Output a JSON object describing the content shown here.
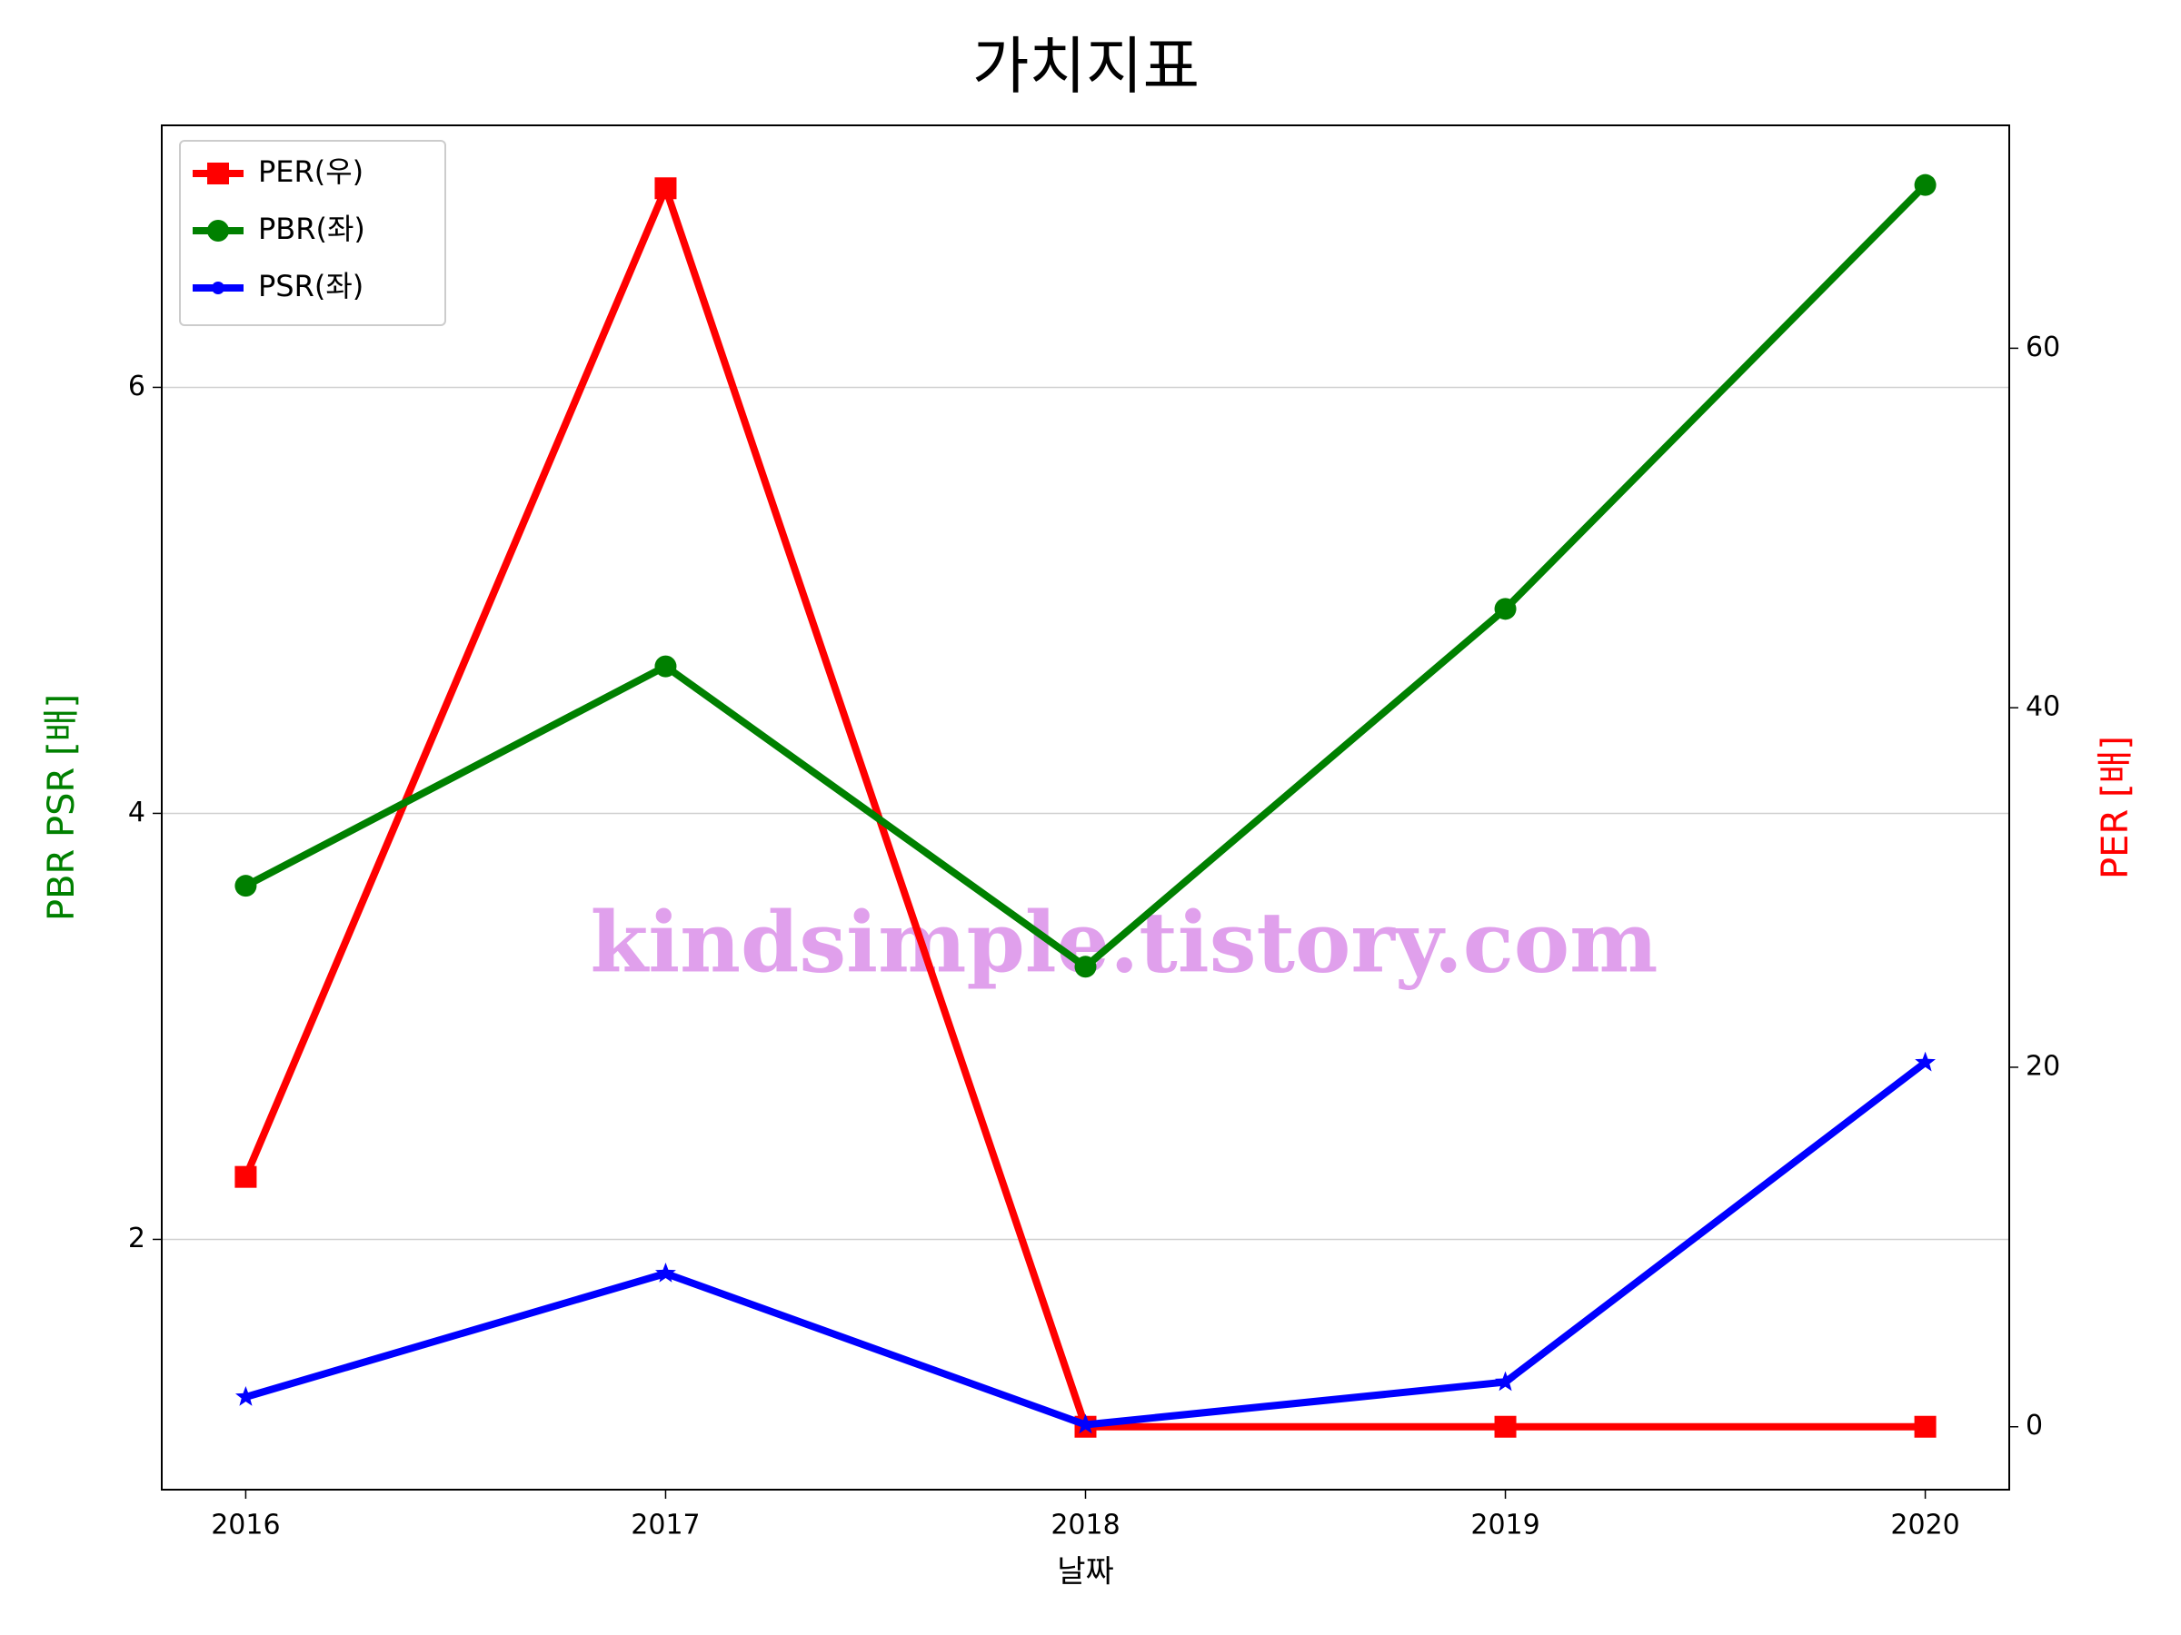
{
  "chart_data": {
    "type": "line",
    "title": "가치지표",
    "x": [
      2016,
      2017,
      2018,
      2019,
      2020
    ],
    "xlim": [
      2015.8,
      2020.2
    ],
    "xticks": [
      2016,
      2017,
      2018,
      2019,
      2020
    ],
    "xlabel": "날짜",
    "ylabel": "PBR PSR [배]",
    "ylabel_color": "green",
    "y2label": "PER [배]",
    "y2label_color": "red",
    "ylim": [
      0.825,
      7.23
    ],
    "yticks": [
      2,
      4,
      6
    ],
    "y2lim": [
      -3.5,
      72.4
    ],
    "y2ticks": [
      0,
      20,
      40,
      60
    ],
    "grid": true,
    "legend": "upper left",
    "annotation": "kindsimple.tistory.com",
    "series": [
      {
        "name": "PER(우)",
        "color": "red",
        "marker": "square",
        "axis": "y2",
        "values": [
          13.9,
          68.9,
          0,
          0,
          0
        ]
      },
      {
        "name": "PBR(좌)",
        "color": "green",
        "marker": "circle",
        "values": [
          3.66,
          4.69,
          3.28,
          4.96,
          6.95
        ]
      },
      {
        "name": "PSR(좌)",
        "color": "blue",
        "marker": "star",
        "values": [
          1.26,
          1.84,
          1.13,
          1.33,
          2.83
        ]
      }
    ]
  }
}
